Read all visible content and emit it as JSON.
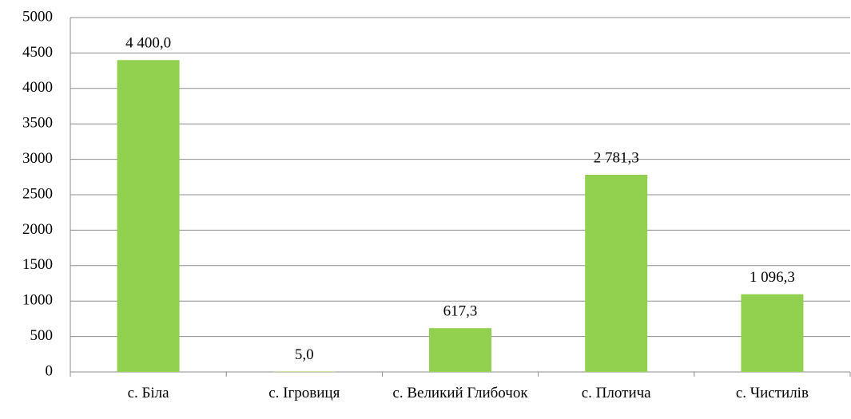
{
  "chart_data": {
    "type": "bar",
    "categories": [
      "с. Біла",
      "с. Ігровиця",
      "с. Великий Глибочок",
      "с. Плотича",
      "с. Чистилів"
    ],
    "values": [
      4400.0,
      5.0,
      617.3,
      2781.3,
      1096.3
    ],
    "value_labels": [
      "4 400,0",
      "5,0",
      "617,3",
      "2 781,3",
      "1 096,3"
    ],
    "color": "#92d050",
    "ylim": [
      0,
      5000
    ],
    "yticks": [
      0,
      500,
      1000,
      1500,
      2000,
      2500,
      3000,
      3500,
      4000,
      4500,
      5000
    ],
    "grid": true
  }
}
